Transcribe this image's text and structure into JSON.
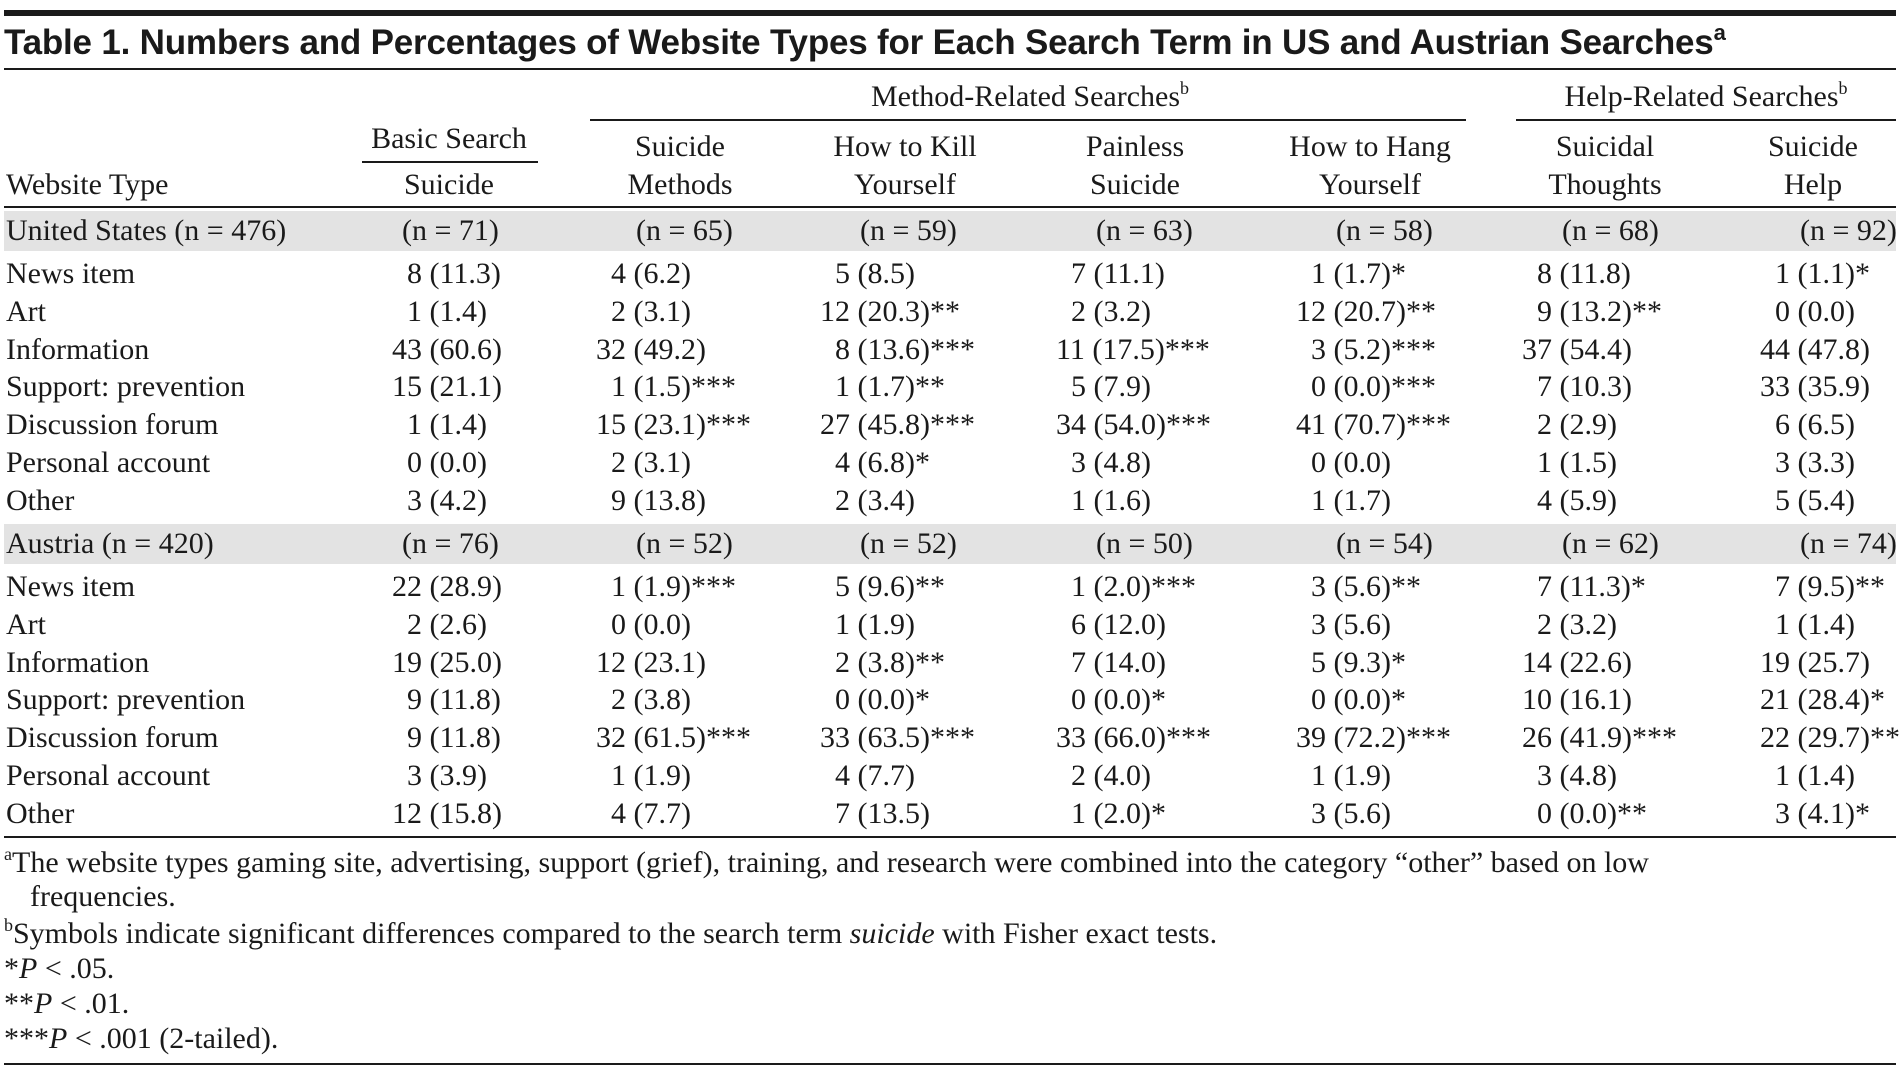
{
  "caption": {
    "text": "Table 1. Numbers and Percentages of Website Types for Each Search Term in US and Austrian Searches",
    "marker": "a"
  },
  "groups": {
    "basic": "Basic Search",
    "method": "Method-Related Searches",
    "method_marker": "b",
    "help": "Help-Related Searches",
    "help_marker": "b"
  },
  "columns": {
    "rowhead": "Website Type",
    "c1": [
      "",
      "Suicide"
    ],
    "c2": [
      "Suicide",
      "Methods"
    ],
    "c3": [
      "How to Kill",
      "Yourself"
    ],
    "c4": [
      "Painless",
      "Suicide"
    ],
    "c5": [
      "How to Hang",
      "Yourself"
    ],
    "c6": [
      "Suicidal",
      "Thoughts"
    ],
    "c7": [
      "Suicide",
      "Help"
    ]
  },
  "sections": [
    {
      "label": "United States (n = 476)",
      "ns": [
        "(n = 71)",
        "(n = 65)",
        "(n = 59)",
        "(n = 63)",
        "(n = 58)",
        "(n = 68)",
        "(n = 92)"
      ],
      "rows": [
        {
          "type": "News item",
          "cells": [
            "8 (11.3)",
            "4 (6.2)",
            "5 (8.5)",
            "7 (11.1)",
            "1 (1.7)*",
            "8 (11.8)",
            "1 (1.1)*"
          ]
        },
        {
          "type": "Art",
          "cells": [
            "1 (1.4)",
            "2 (3.1)",
            "12 (20.3)**",
            "2 (3.2)",
            "12 (20.7)**",
            "9 (13.2)**",
            "0 (0.0)"
          ]
        },
        {
          "type": "Information",
          "cells": [
            "43 (60.6)",
            "32 (49.2)",
            "8 (13.6)***",
            "11 (17.5)***",
            "3 (5.2)***",
            "37 (54.4)",
            "44 (47.8)"
          ]
        },
        {
          "type": "Support: prevention",
          "cells": [
            "15 (21.1)",
            "1 (1.5)***",
            "1 (1.7)**",
            "5 (7.9)",
            "0 (0.0)***",
            "7 (10.3)",
            "33 (35.9)"
          ]
        },
        {
          "type": "Discussion forum",
          "cells": [
            "1 (1.4)",
            "15 (23.1)***",
            "27 (45.8)***",
            "34 (54.0)***",
            "41 (70.7)***",
            "2 (2.9)",
            "6 (6.5)"
          ]
        },
        {
          "type": "Personal account",
          "cells": [
            "0 (0.0)",
            "2 (3.1)",
            "4 (6.8)*",
            "3 (4.8)",
            "0 (0.0)",
            "1 (1.5)",
            "3 (3.3)"
          ]
        },
        {
          "type": "Other",
          "cells": [
            "3 (4.2)",
            "9 (13.8)",
            "2 (3.4)",
            "1 (1.6)",
            "1 (1.7)",
            "4 (5.9)",
            "5 (5.4)"
          ]
        }
      ]
    },
    {
      "label": "Austria (n = 420)",
      "ns": [
        "(n = 76)",
        "(n = 52)",
        "(n = 52)",
        "(n = 50)",
        "(n = 54)",
        "(n = 62)",
        "(n = 74)"
      ],
      "rows": [
        {
          "type": "News item",
          "cells": [
            "22 (28.9)",
            "1 (1.9)***",
            "5 (9.6)**",
            "1 (2.0)***",
            "3 (5.6)**",
            "7 (11.3)*",
            "7 (9.5)**"
          ]
        },
        {
          "type": "Art",
          "cells": [
            "2 (2.6)",
            "0 (0.0)",
            "1 (1.9)",
            "6 (12.0)",
            "3 (5.6)",
            "2 (3.2)",
            "1 (1.4)"
          ]
        },
        {
          "type": "Information",
          "cells": [
            "19 (25.0)",
            "12 (23.1)",
            "2 (3.8)**",
            "7 (14.0)",
            "5 (9.3)*",
            "14 (22.6)",
            "19 (25.7)"
          ]
        },
        {
          "type": "Support: prevention",
          "cells": [
            "9 (11.8)",
            "2 (3.8)",
            "0 (0.0)*",
            "0 (0.0)*",
            "0 (0.0)*",
            "10 (16.1)",
            "21 (28.4)*"
          ]
        },
        {
          "type": "Discussion forum",
          "cells": [
            "9 (11.8)",
            "32 (61.5)***",
            "33 (63.5)***",
            "33 (66.0)***",
            "39 (72.2)***",
            "26 (41.9)***",
            "22 (29.7)**"
          ]
        },
        {
          "type": "Personal account",
          "cells": [
            "3 (3.9)",
            "1 (1.9)",
            "4 (7.7)",
            "2 (4.0)",
            "1 (1.9)",
            "3 (4.8)",
            "1 (1.4)"
          ]
        },
        {
          "type": "Other",
          "cells": [
            "12 (15.8)",
            "4 (7.7)",
            "7 (13.5)",
            "1 (2.0)*",
            "3 (5.6)",
            "0 (0.0)**",
            "3 (4.1)*"
          ]
        }
      ]
    }
  ],
  "footnotes": {
    "a_marker": "a",
    "a_line1": "The website types gaming site, advertising, support (grief), training, and research were combined into the category “other” based on low",
    "a_line2": "frequencies.",
    "b_marker": "b",
    "b_pre": "Symbols indicate significant differences compared to the search term ",
    "b_term": "suicide",
    "b_post": " with Fisher exact tests.",
    "p1_stars": "*",
    "p1_p": "P",
    "p1_rest": " < .05.",
    "p2_stars": "**",
    "p2_p": "P",
    "p2_rest": " < .01.",
    "p3_stars": "***",
    "p3_p": "P",
    "p3_rest": " < .001 (2-tailed)."
  }
}
